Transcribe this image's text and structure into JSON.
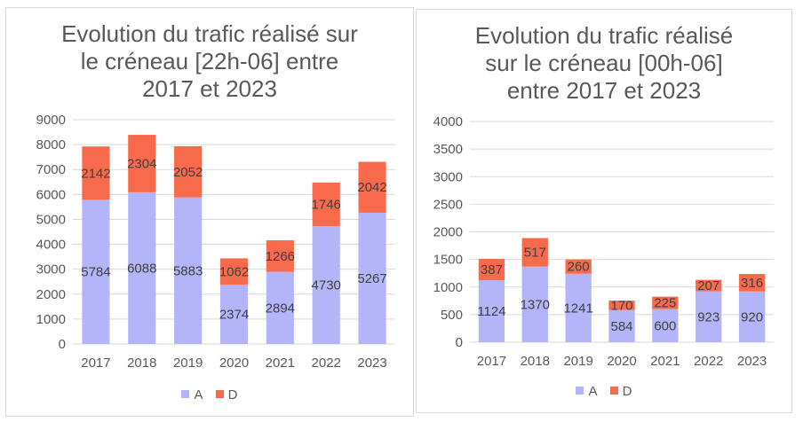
{
  "colors": {
    "A": "#b4b4f8",
    "D": "#f76a4b",
    "grid": "#d9d9d9",
    "label": "#404040"
  },
  "legend": [
    "A",
    "D"
  ],
  "chart_data": [
    {
      "type": "bar",
      "stacked": true,
      "title": "Evolution du trafic réalisé sur\nle créneau [22h-06] entre\n2017 et 2023",
      "categories": [
        "2017",
        "2018",
        "2019",
        "2020",
        "2021",
        "2022",
        "2023"
      ],
      "series": [
        {
          "name": "A",
          "values": [
            5784,
            6088,
            5883,
            2374,
            2894,
            4730,
            5267
          ]
        },
        {
          "name": "D",
          "values": [
            2142,
            2304,
            2052,
            1062,
            1266,
            1746,
            2042
          ]
        }
      ],
      "ylim": [
        0,
        9000
      ],
      "yticks": [
        0,
        1000,
        2000,
        3000,
        4000,
        5000,
        6000,
        7000,
        8000,
        9000
      ],
      "grid": true,
      "legend_position": "bottom"
    },
    {
      "type": "bar",
      "stacked": true,
      "title": "Evolution du trafic réalisé\nsur le créneau [00h-06]\nentre 2017 et 2023",
      "categories": [
        "2017",
        "2018",
        "2019",
        "2020",
        "2021",
        "2022",
        "2023"
      ],
      "series": [
        {
          "name": "A",
          "values": [
            1124,
            1370,
            1241,
            584,
            600,
            923,
            920
          ]
        },
        {
          "name": "D",
          "values": [
            387,
            517,
            260,
            170,
            225,
            207,
            316
          ]
        }
      ],
      "ylim": [
        0,
        4000
      ],
      "yticks": [
        0,
        500,
        1000,
        1500,
        2000,
        2500,
        3000,
        3500,
        4000
      ],
      "grid": true,
      "legend_position": "bottom"
    }
  ]
}
